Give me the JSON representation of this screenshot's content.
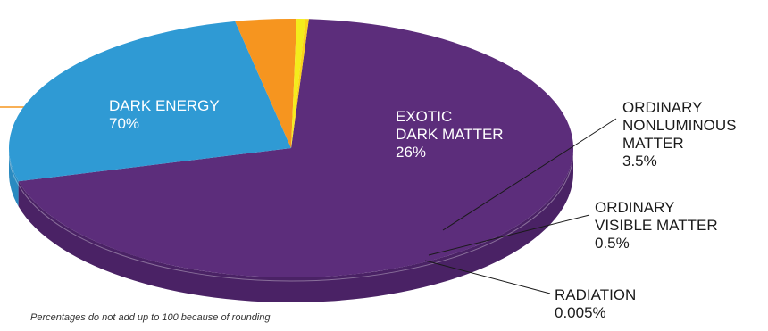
{
  "chart_data": {
    "type": "pie",
    "style": "3d",
    "slices": [
      {
        "name": "DARK ENERGY",
        "label_lines": [
          "DARK ENERGY"
        ],
        "value": 70,
        "value_label": "70%",
        "color": "#5c2d7b",
        "side_color": "#4a2265"
      },
      {
        "name": "EXOTIC DARK MATTER",
        "label_lines": [
          "EXOTIC",
          "DARK MATTER"
        ],
        "value": 26,
        "value_label": "26%",
        "color": "#2f9ad4",
        "side_color": "#2a8ac0"
      },
      {
        "name": "ORDINARY NONLUMINOUS MATTER",
        "label_lines": [
          "ORDINARY",
          "NONLUMINOUS",
          "MATTER"
        ],
        "value": 3.5,
        "value_label": "3.5%",
        "color": "#f6951f",
        "side_color": "#e8871a"
      },
      {
        "name": "ORDINARY VISIBLE MATTER",
        "label_lines": [
          "ORDINARY",
          "VISIBLE MATTER"
        ],
        "value": 0.5,
        "value_label": "0.5%",
        "color": "#f4ec1c",
        "side_color": "#e6de10"
      },
      {
        "name": "RADIATION",
        "label_lines": [
          "RADIATION"
        ],
        "value": 0.005,
        "value_label": "0.005%",
        "color": "#f9d21a",
        "side_color": "#eec510"
      }
    ],
    "note": "Percentages do not add up to 100 because of rounding",
    "accent_line_color": "#f6951f"
  }
}
